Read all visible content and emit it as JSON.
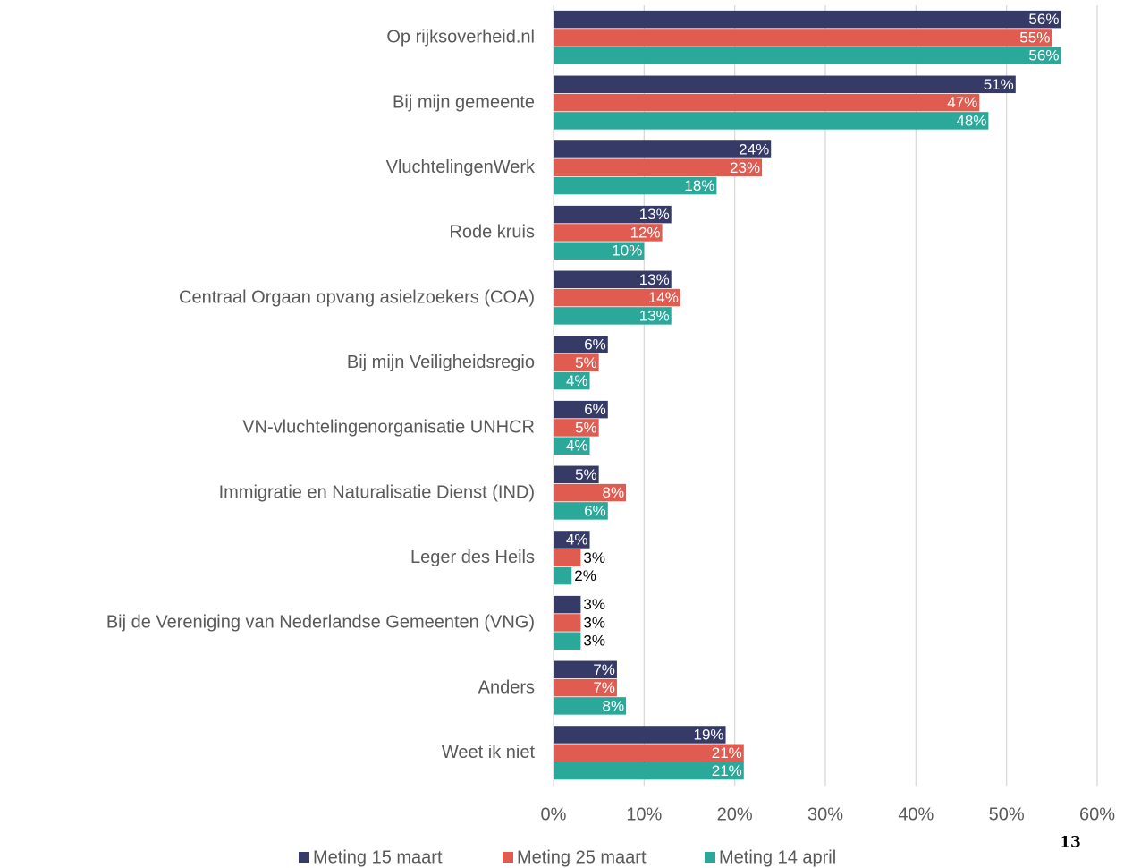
{
  "chart_data": {
    "type": "bar",
    "orientation": "horizontal",
    "categories": [
      "Op rijksoverheid.nl",
      "Bij mijn gemeente",
      "VluchtelingenWerk",
      "Rode kruis",
      "Centraal Orgaan opvang asielzoekers (COA)",
      "Bij mijn Veiligheidsregio",
      "VN-vluchtelingenorganisatie UNHCR",
      "Immigratie en Naturalisatie Dienst (IND)",
      "Leger des Heils",
      "Bij de Vereniging van Nederlandse Gemeenten (VNG)",
      "Anders",
      "Weet ik niet"
    ],
    "series": [
      {
        "name": "Meting 15 maart",
        "color": "#363a66",
        "values": [
          56,
          51,
          24,
          13,
          13,
          6,
          6,
          5,
          4,
          3,
          7,
          19
        ],
        "value_labels": [
          "56%",
          "51%",
          "24%",
          "13%",
          "13%",
          "6%",
          "6%",
          "5%",
          "4%",
          "3%",
          "7%",
          "19%"
        ]
      },
      {
        "name": "Meting 25 maart",
        "color": "#e05c50",
        "values": [
          55,
          47,
          23,
          12,
          14,
          5,
          5,
          8,
          3,
          3,
          7,
          21
        ],
        "value_labels": [
          "55%",
          "47%",
          "23%",
          "12%",
          "14%",
          "5%",
          "5%",
          "8%",
          "3%",
          "3%",
          "7%",
          "21%"
        ]
      },
      {
        "name": "Meting 14 april",
        "color": "#2aa89a",
        "values": [
          56,
          48,
          18,
          10,
          13,
          4,
          4,
          6,
          2,
          3,
          8,
          21
        ],
        "value_labels": [
          "56%",
          "48%",
          "18%",
          "10%",
          "13%",
          "4%",
          "4%",
          "6%",
          "2%",
          "3%",
          "8%",
          "21%"
        ]
      }
    ],
    "xlim": [
      0,
      60
    ],
    "xticks": [
      {
        "value": 0,
        "label": "0%"
      },
      {
        "value": 10,
        "label": "10%"
      },
      {
        "value": 20,
        "label": "20%"
      },
      {
        "value": 30,
        "label": "30%"
      },
      {
        "value": 40,
        "label": "40%"
      },
      {
        "value": 50,
        "label": "50%"
      },
      {
        "value": 60,
        "label": "60%"
      }
    ],
    "grid": true,
    "legend": "bottom",
    "page_number": "13"
  }
}
